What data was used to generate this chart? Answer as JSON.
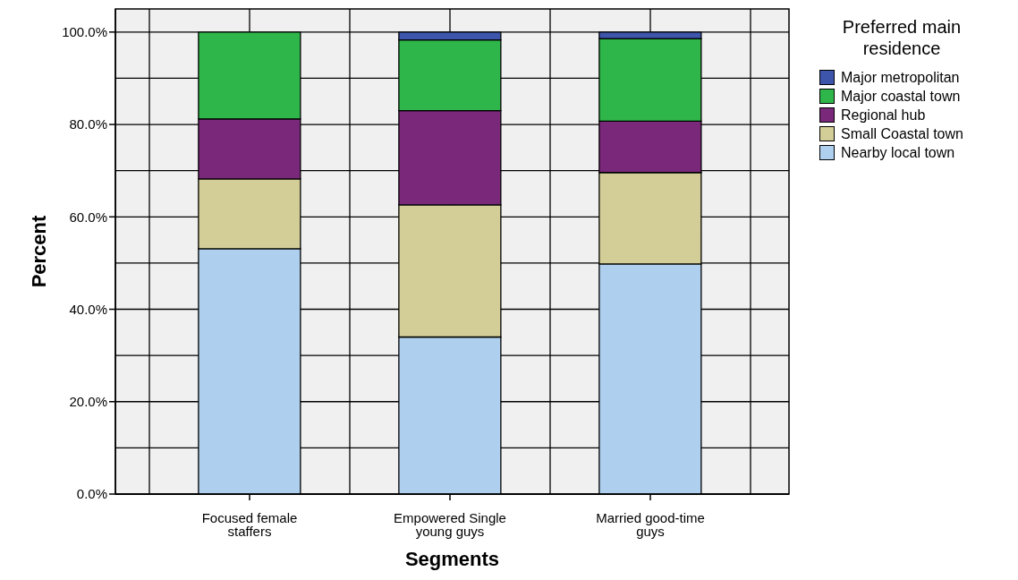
{
  "chart_data": {
    "type": "bar",
    "stacked": true,
    "xlabel": "Segments",
    "ylabel": "Percent",
    "legend_title": "Preferred main residence",
    "legend": "right",
    "grid": true,
    "categories": [
      "Focused female staffers",
      "Empowered Single young guys",
      "Married good-time guys"
    ],
    "series": [
      {
        "name": "Nearby local town",
        "color": "#aed0ee",
        "values": [
          53.1,
          34.0,
          49.8
        ]
      },
      {
        "name": "Small Coastal town",
        "color": "#d3ce97",
        "values": [
          15.1,
          28.6,
          19.8
        ]
      },
      {
        "name": "Regional hub",
        "color": "#7a287a",
        "values": [
          13.0,
          20.4,
          11.1
        ]
      },
      {
        "name": "Major coastal town",
        "color": "#2fb64a",
        "values": [
          18.8,
          15.3,
          17.9
        ]
      },
      {
        "name": "Major metropolitan",
        "color": "#3d56ab",
        "values": [
          0,
          1.7,
          1.4
        ]
      }
    ],
    "ylim": [
      0,
      105
    ],
    "yticks": [
      {
        "value": 0,
        "label": "0.0%"
      },
      {
        "value": 20,
        "label": "20.0%"
      },
      {
        "value": 40,
        "label": "40.0%"
      },
      {
        "value": 60,
        "label": "60.0%"
      },
      {
        "value": 80,
        "label": "80.0%"
      },
      {
        "value": 100,
        "label": "100.0%"
      }
    ]
  }
}
